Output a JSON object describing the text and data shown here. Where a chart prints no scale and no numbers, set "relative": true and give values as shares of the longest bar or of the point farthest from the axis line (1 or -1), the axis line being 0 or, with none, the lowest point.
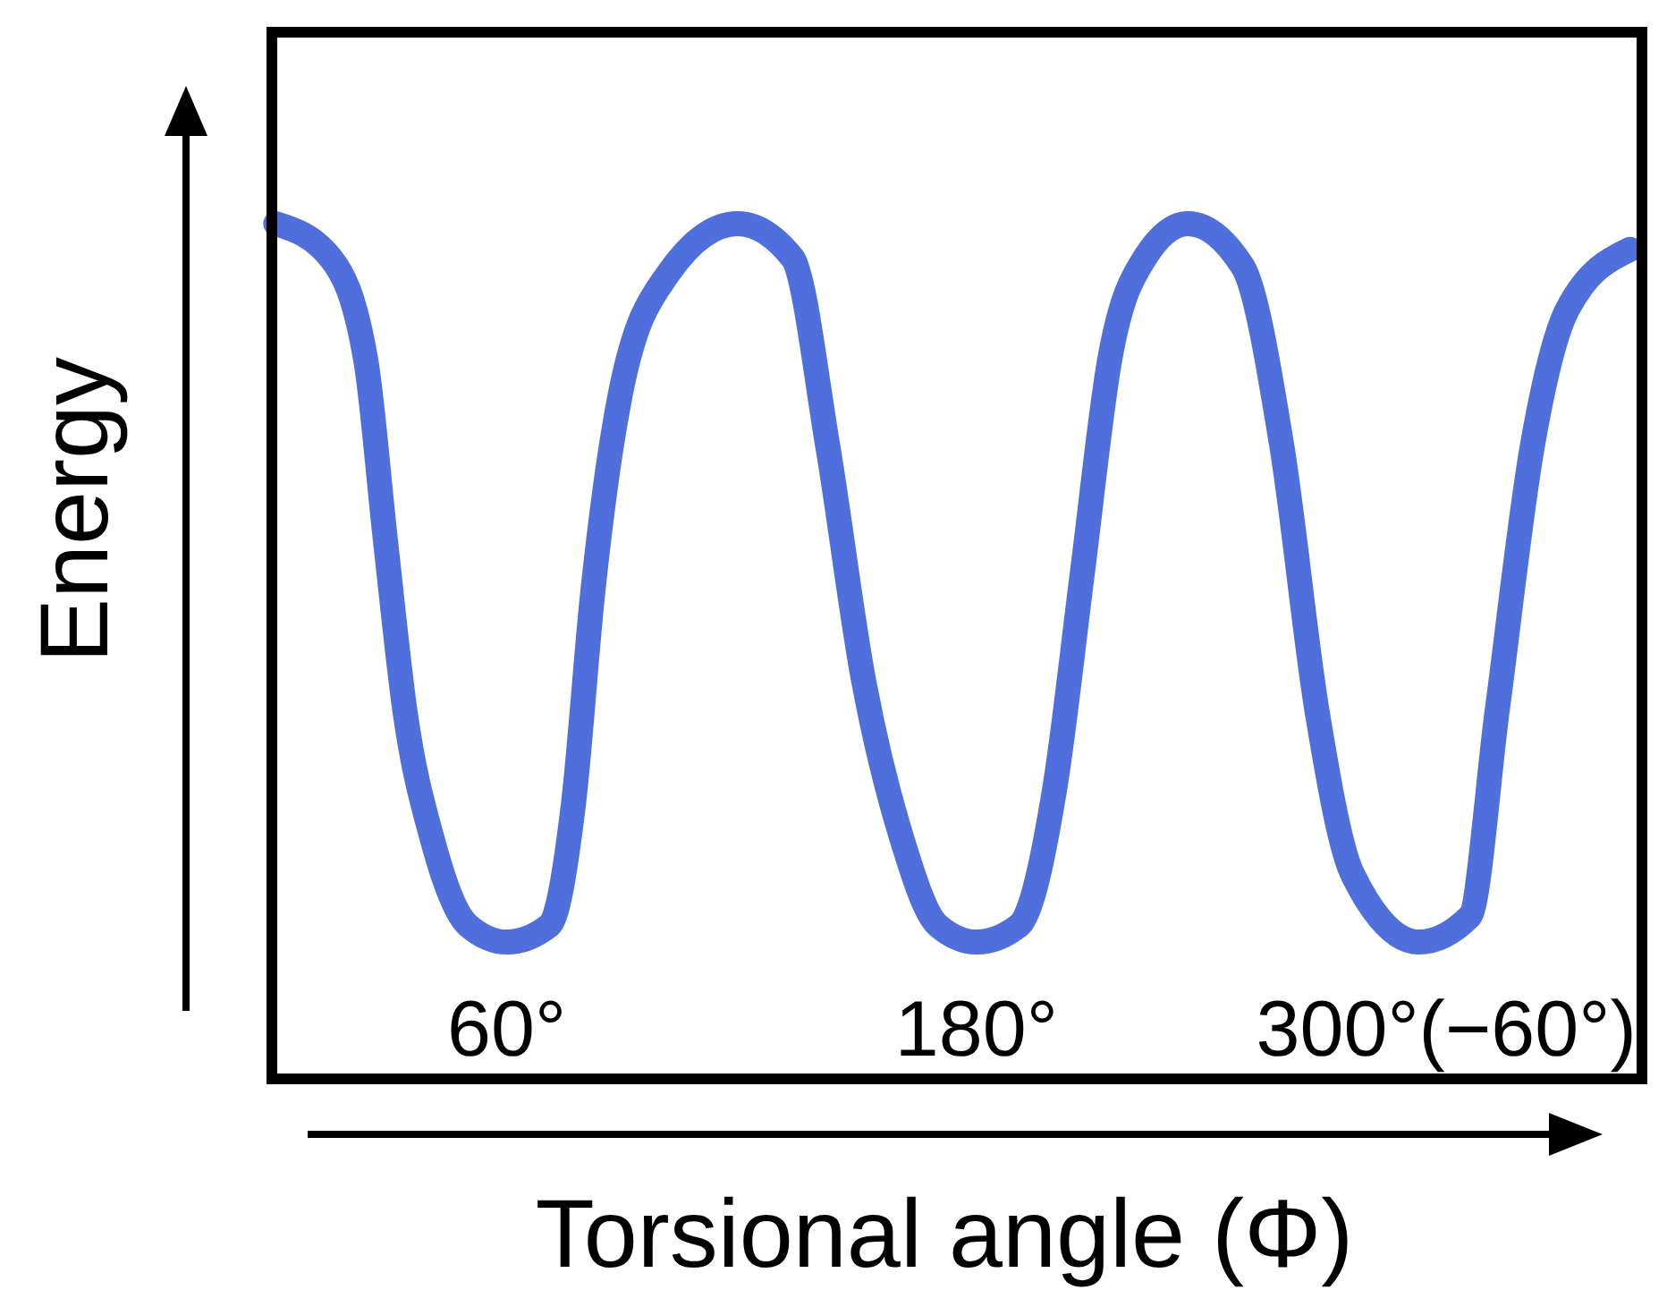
{
  "chart_data": {
    "type": "line",
    "xlabel": "Torsional angle (Φ)",
    "ylabel": "Energy",
    "relative": true,
    "grid": false,
    "marker": "none",
    "line_style": "solid",
    "xlim": [
      0,
      350
    ],
    "xticks": [
      {
        "value": 60,
        "label": "60°"
      },
      {
        "value": 180,
        "label": "180°"
      },
      {
        "value": 300,
        "label": "300°(−60°)"
      }
    ],
    "series": [
      {
        "color": "#4f6fdc",
        "x": [
          1,
          15,
          24,
          29,
          34,
          41,
          50,
          60,
          71,
          77,
          82,
          89,
          101,
          119,
          133,
          142,
          151,
          161,
          170,
          180,
          191,
          200,
          207,
          214,
          223,
          234,
          248,
          258,
          267,
          276,
          293,
          306,
          313,
          322,
          331,
          347
        ],
        "values": [
          1,
          0.96,
          0.84,
          0.63,
          0.43,
          0.28,
          0.18,
          0.16,
          0.18,
          0.32,
          0.57,
          0.8,
          0.94,
          1,
          0.96,
          0.74,
          0.47,
          0.28,
          0.18,
          0.16,
          0.18,
          0.34,
          0.59,
          0.84,
          0.96,
          1,
          0.95,
          0.74,
          0.43,
          0.24,
          0.16,
          0.19,
          0.43,
          0.74,
          0.9,
          0.97
        ]
      }
    ]
  }
}
